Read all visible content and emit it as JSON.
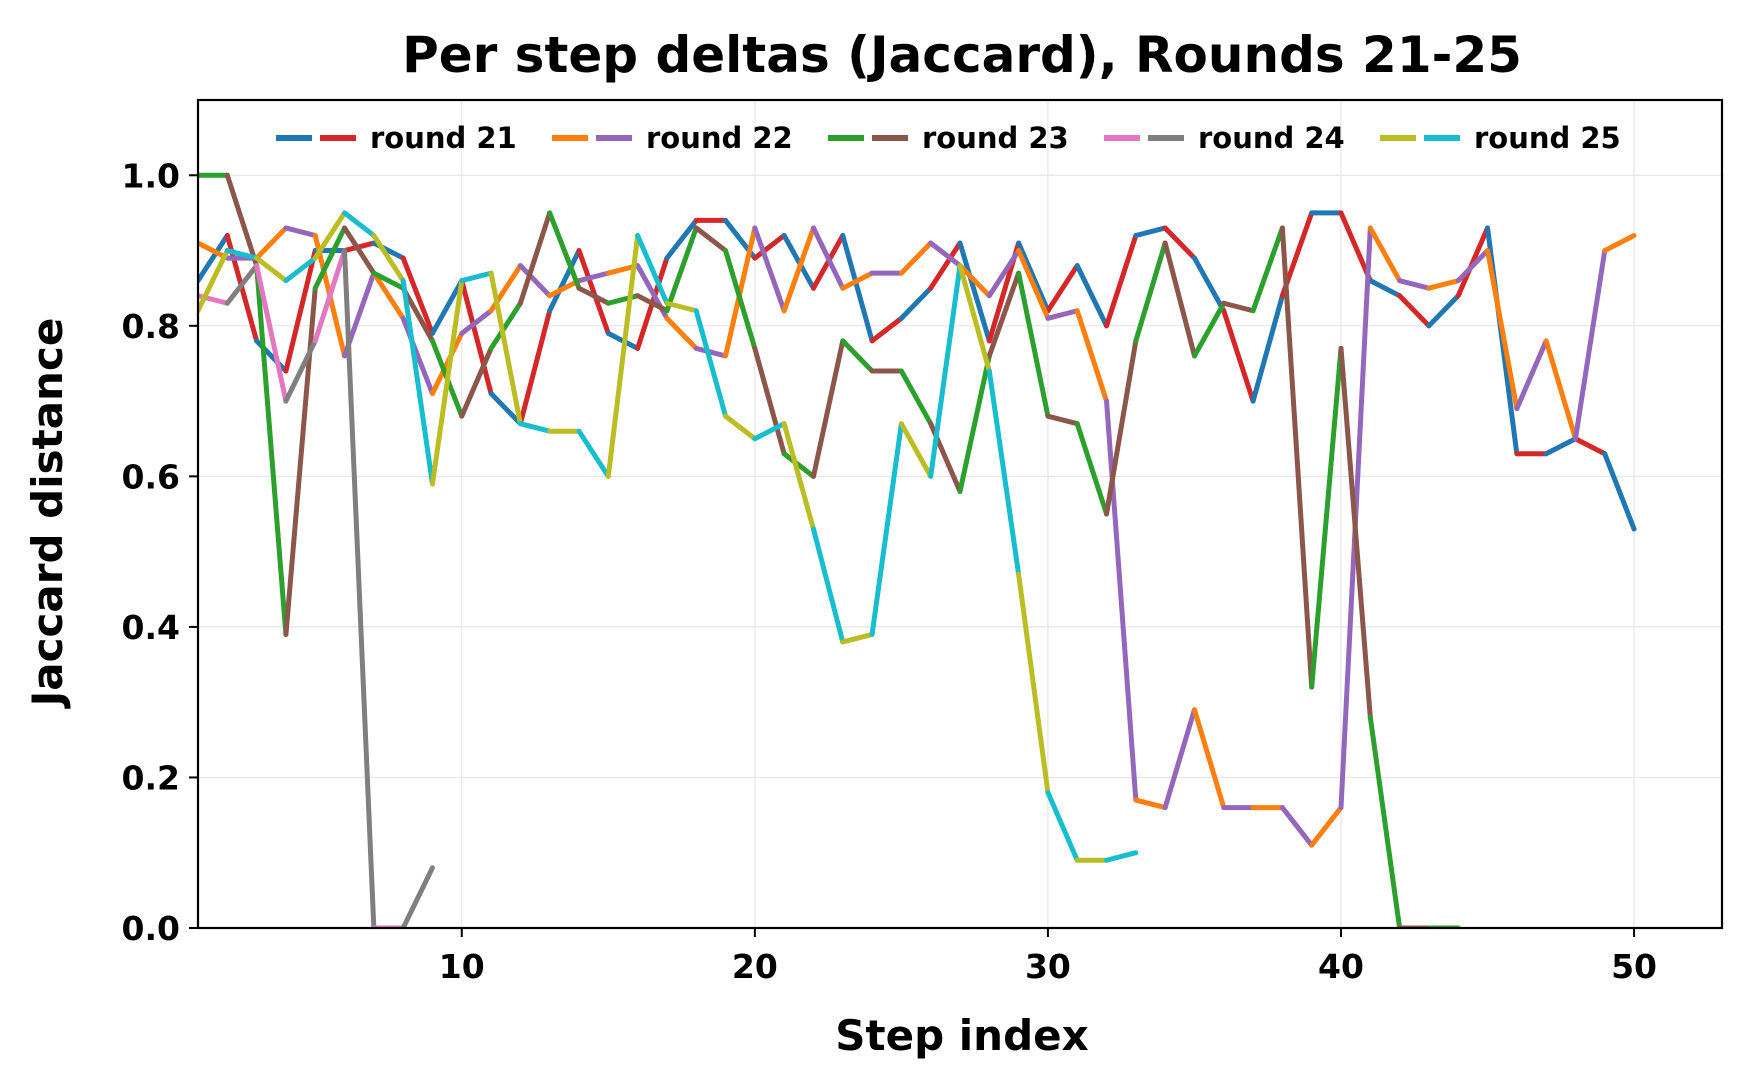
{
  "chart_data": {
    "type": "line",
    "title": "Per step deltas (Jaccard), Rounds 21-25",
    "xlabel": "Step index",
    "ylabel": "Jaccard distance",
    "xlim": [
      1,
      53
    ],
    "ylim": [
      0,
      1.1
    ],
    "xticks": [
      10,
      20,
      30,
      40,
      50
    ],
    "yticks": [
      0.0,
      0.2,
      0.4,
      0.6,
      0.8,
      1.0
    ],
    "xtick_labels": [
      "10",
      "20",
      "30",
      "40",
      "50"
    ],
    "ytick_labels": [
      "0.0",
      "0.2",
      "0.4",
      "0.6",
      "0.8",
      "1.0"
    ],
    "grid": true,
    "legend_placement": "top",
    "series": [
      {
        "name": "round 21",
        "colors": [
          "#1f77b4",
          "#d62728"
        ],
        "x": [
          1,
          2,
          3,
          4,
          5,
          6,
          7,
          8,
          9,
          10,
          11,
          12,
          13,
          14,
          15,
          16,
          17,
          18,
          19,
          20,
          21,
          22,
          23,
          24,
          25,
          26,
          27,
          28,
          29,
          30,
          31,
          32,
          33,
          34,
          35,
          36,
          37,
          38,
          39,
          40,
          41,
          42,
          43,
          44,
          45,
          46,
          47,
          48,
          49,
          50
        ],
        "y": [
          0.86,
          0.92,
          0.78,
          0.74,
          0.9,
          0.9,
          0.91,
          0.89,
          0.79,
          0.86,
          0.71,
          0.67,
          0.82,
          0.9,
          0.79,
          0.77,
          0.89,
          0.94,
          0.94,
          0.89,
          0.92,
          0.85,
          0.92,
          0.78,
          0.81,
          0.85,
          0.91,
          0.78,
          0.91,
          0.82,
          0.88,
          0.8,
          0.92,
          0.93,
          0.89,
          0.82,
          0.7,
          0.84,
          0.95,
          0.95,
          0.86,
          0.84,
          0.8,
          0.84,
          0.93,
          0.63,
          0.63,
          0.65,
          0.63,
          0.53
        ]
      },
      {
        "name": "round 22",
        "colors": [
          "#ff7f0e",
          "#9467bd"
        ],
        "x": [
          1,
          2,
          3,
          4,
          5,
          6,
          7,
          8,
          9,
          10,
          11,
          12,
          13,
          14,
          15,
          16,
          17,
          18,
          19,
          20,
          21,
          22,
          23,
          24,
          25,
          26,
          27,
          28,
          29,
          30,
          31,
          32,
          33,
          34,
          35,
          36,
          37,
          38,
          39,
          40,
          41,
          42,
          43,
          44,
          45,
          46,
          47,
          48,
          49,
          50
        ],
        "y": [
          0.91,
          0.89,
          0.89,
          0.93,
          0.92,
          0.76,
          0.87,
          0.81,
          0.71,
          0.79,
          0.82,
          0.88,
          0.84,
          0.86,
          0.87,
          0.88,
          0.81,
          0.77,
          0.76,
          0.93,
          0.82,
          0.93,
          0.85,
          0.87,
          0.87,
          0.91,
          0.88,
          0.84,
          0.9,
          0.81,
          0.82,
          0.7,
          0.17,
          0.16,
          0.29,
          0.16,
          0.16,
          0.16,
          0.11,
          0.16,
          0.93,
          0.86,
          0.85,
          0.86,
          0.9,
          0.69,
          0.78,
          0.65,
          0.9,
          0.92
        ]
      },
      {
        "name": "round 23",
        "colors": [
          "#2ca02c",
          "#8c564b"
        ],
        "x": [
          1,
          2,
          3,
          4,
          5,
          6,
          7,
          8,
          9,
          10,
          11,
          12,
          13,
          14,
          15,
          16,
          17,
          18,
          19,
          20,
          21,
          22,
          23,
          24,
          25,
          26,
          27,
          28,
          29,
          30,
          31,
          32,
          33,
          34,
          35,
          36,
          37,
          38,
          39,
          40,
          41,
          42,
          43,
          44
        ],
        "y": [
          1.0,
          1.0,
          0.88,
          0.39,
          0.85,
          0.93,
          0.87,
          0.85,
          0.78,
          0.68,
          0.77,
          0.83,
          0.95,
          0.85,
          0.83,
          0.84,
          0.82,
          0.93,
          0.9,
          0.77,
          0.63,
          0.6,
          0.78,
          0.74,
          0.74,
          0.67,
          0.58,
          0.76,
          0.87,
          0.68,
          0.67,
          0.55,
          0.78,
          0.91,
          0.76,
          0.83,
          0.82,
          0.93,
          0.32,
          0.77,
          0.28,
          0.0,
          0.0,
          0.0
        ]
      },
      {
        "name": "round 24",
        "colors": [
          "#e377c2",
          "#7f7f7f"
        ],
        "x": [
          1,
          2,
          3,
          4,
          5,
          6,
          7,
          8,
          9
        ],
        "y": [
          0.84,
          0.83,
          0.88,
          0.7,
          0.78,
          0.9,
          0.0,
          0.0,
          0.08
        ]
      },
      {
        "name": "round 25",
        "colors": [
          "#bcbd22",
          "#17becf"
        ],
        "x": [
          1,
          2,
          3,
          4,
          5,
          6,
          7,
          8,
          9,
          10,
          11,
          12,
          13,
          14,
          15,
          16,
          17,
          18,
          19,
          20,
          21,
          22,
          23,
          24,
          25,
          26,
          27,
          28,
          29,
          30,
          31,
          32,
          33
        ],
        "y": [
          0.82,
          0.9,
          0.89,
          0.86,
          0.89,
          0.95,
          0.92,
          0.86,
          0.59,
          0.86,
          0.87,
          0.67,
          0.66,
          0.66,
          0.6,
          0.92,
          0.83,
          0.82,
          0.68,
          0.65,
          0.67,
          0.53,
          0.38,
          0.39,
          0.67,
          0.6,
          0.88,
          0.74,
          0.47,
          0.18,
          0.09,
          0.09,
          0.1
        ]
      }
    ]
  }
}
